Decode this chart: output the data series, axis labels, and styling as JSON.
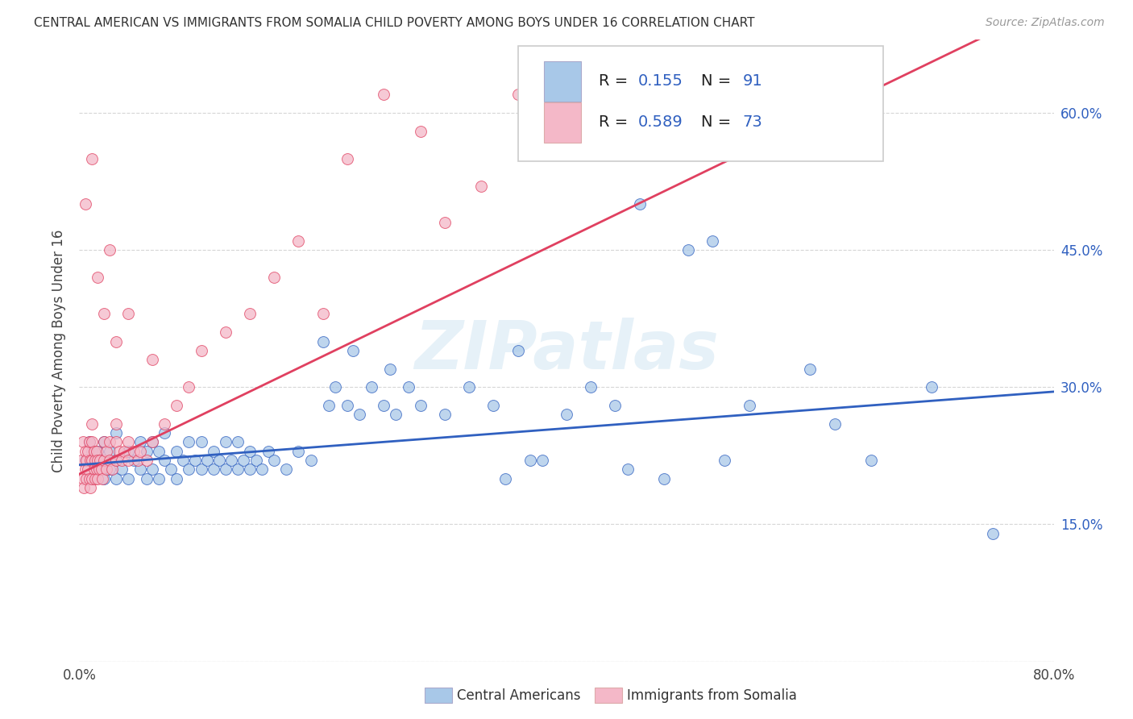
{
  "title": "CENTRAL AMERICAN VS IMMIGRANTS FROM SOMALIA CHILD POVERTY AMONG BOYS UNDER 16 CORRELATION CHART",
  "source_text": "Source: ZipAtlas.com",
  "ylabel": "Child Poverty Among Boys Under 16",
  "xlim": [
    0.0,
    0.8
  ],
  "ylim": [
    0.0,
    0.68
  ],
  "ytick_positions": [
    0.0,
    0.15,
    0.3,
    0.45,
    0.6
  ],
  "yticklabels_right": [
    "",
    "15.0%",
    "30.0%",
    "45.0%",
    "60.0%"
  ],
  "xtick_positions": [
    0.0,
    0.1,
    0.2,
    0.3,
    0.4,
    0.5,
    0.6,
    0.7,
    0.8
  ],
  "xticklabels": [
    "0.0%",
    "",
    "",
    "",
    "",
    "",
    "",
    "",
    "80.0%"
  ],
  "R_blue": 0.155,
  "N_blue": 91,
  "R_pink": 0.589,
  "N_pink": 73,
  "color_blue": "#a8c8e8",
  "color_pink": "#f4b8c8",
  "line_color_blue": "#3060c0",
  "line_color_pink": "#e04060",
  "legend_label_blue": "Central Americans",
  "legend_label_pink": "Immigrants from Somalia",
  "watermark": "ZIPatlas",
  "blue_line_start_y": 0.215,
  "blue_line_end_y": 0.295,
  "pink_line_start_y": 0.205,
  "pink_line_end_y": 0.72,
  "blue_pts_x": [
    0.005,
    0.008,
    0.01,
    0.01,
    0.012,
    0.015,
    0.015,
    0.018,
    0.02,
    0.02,
    0.025,
    0.025,
    0.03,
    0.03,
    0.03,
    0.035,
    0.04,
    0.04,
    0.045,
    0.05,
    0.05,
    0.055,
    0.055,
    0.06,
    0.06,
    0.065,
    0.065,
    0.07,
    0.07,
    0.075,
    0.08,
    0.08,
    0.085,
    0.09,
    0.09,
    0.095,
    0.1,
    0.1,
    0.105,
    0.11,
    0.11,
    0.115,
    0.12,
    0.12,
    0.125,
    0.13,
    0.13,
    0.135,
    0.14,
    0.14,
    0.145,
    0.15,
    0.155,
    0.16,
    0.17,
    0.18,
    0.19,
    0.2,
    0.205,
    0.21,
    0.22,
    0.225,
    0.23,
    0.24,
    0.25,
    0.255,
    0.26,
    0.27,
    0.28,
    0.3,
    0.32,
    0.34,
    0.36,
    0.38,
    0.4,
    0.42,
    0.44,
    0.46,
    0.5,
    0.52,
    0.55,
    0.6,
    0.62,
    0.65,
    0.7,
    0.75,
    0.35,
    0.37,
    0.45,
    0.48,
    0.53
  ],
  "blue_pts_y": [
    0.22,
    0.24,
    0.2,
    0.23,
    0.22,
    0.21,
    0.23,
    0.22,
    0.2,
    0.24,
    0.21,
    0.23,
    0.2,
    0.22,
    0.25,
    0.21,
    0.2,
    0.23,
    0.22,
    0.21,
    0.24,
    0.2,
    0.23,
    0.21,
    0.24,
    0.2,
    0.23,
    0.22,
    0.25,
    0.21,
    0.2,
    0.23,
    0.22,
    0.21,
    0.24,
    0.22,
    0.21,
    0.24,
    0.22,
    0.21,
    0.23,
    0.22,
    0.21,
    0.24,
    0.22,
    0.21,
    0.24,
    0.22,
    0.21,
    0.23,
    0.22,
    0.21,
    0.23,
    0.22,
    0.21,
    0.23,
    0.22,
    0.35,
    0.28,
    0.3,
    0.28,
    0.34,
    0.27,
    0.3,
    0.28,
    0.32,
    0.27,
    0.3,
    0.28,
    0.27,
    0.3,
    0.28,
    0.34,
    0.22,
    0.27,
    0.3,
    0.28,
    0.5,
    0.45,
    0.46,
    0.28,
    0.32,
    0.26,
    0.22,
    0.3,
    0.14,
    0.2,
    0.22,
    0.21,
    0.2,
    0.22
  ],
  "pink_pts_x": [
    0.002,
    0.003,
    0.003,
    0.004,
    0.005,
    0.005,
    0.006,
    0.006,
    0.007,
    0.007,
    0.008,
    0.008,
    0.009,
    0.009,
    0.01,
    0.01,
    0.01,
    0.01,
    0.012,
    0.012,
    0.013,
    0.013,
    0.014,
    0.014,
    0.015,
    0.015,
    0.016,
    0.017,
    0.018,
    0.019,
    0.02,
    0.02,
    0.022,
    0.022,
    0.025,
    0.025,
    0.027,
    0.03,
    0.03,
    0.03,
    0.033,
    0.035,
    0.037,
    0.04,
    0.04,
    0.045,
    0.048,
    0.05,
    0.055,
    0.06,
    0.07,
    0.08,
    0.09,
    0.1,
    0.12,
    0.14,
    0.16,
    0.18,
    0.2,
    0.22,
    0.25,
    0.28,
    0.3,
    0.33,
    0.36,
    0.005,
    0.01,
    0.015,
    0.02,
    0.025,
    0.03,
    0.04,
    0.06
  ],
  "pink_pts_y": [
    0.22,
    0.2,
    0.24,
    0.19,
    0.21,
    0.23,
    0.2,
    0.22,
    0.21,
    0.23,
    0.2,
    0.24,
    0.19,
    0.22,
    0.2,
    0.22,
    0.24,
    0.26,
    0.21,
    0.23,
    0.2,
    0.22,
    0.21,
    0.23,
    0.2,
    0.22,
    0.21,
    0.22,
    0.21,
    0.2,
    0.22,
    0.24,
    0.21,
    0.23,
    0.22,
    0.24,
    0.21,
    0.22,
    0.24,
    0.26,
    0.23,
    0.22,
    0.23,
    0.22,
    0.24,
    0.23,
    0.22,
    0.23,
    0.22,
    0.24,
    0.26,
    0.28,
    0.3,
    0.34,
    0.36,
    0.38,
    0.42,
    0.46,
    0.38,
    0.55,
    0.62,
    0.58,
    0.48,
    0.52,
    0.62,
    0.5,
    0.55,
    0.42,
    0.38,
    0.45,
    0.35,
    0.38,
    0.33
  ]
}
